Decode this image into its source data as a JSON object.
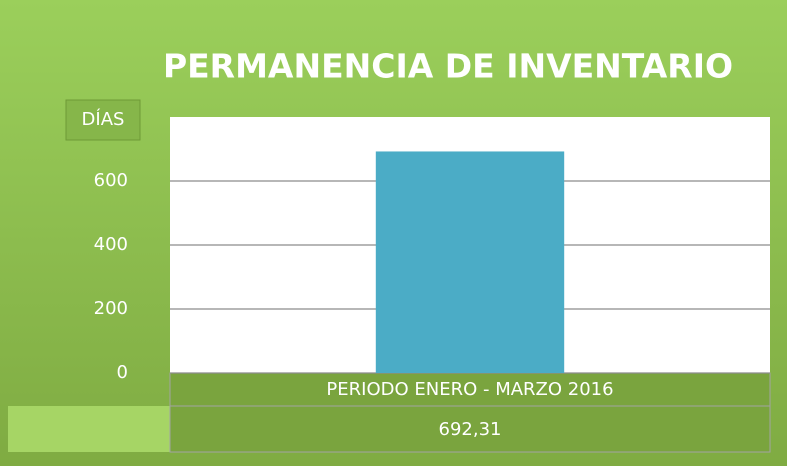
{
  "chart_data": {
    "type": "bar",
    "title": "PERMANENCIA DE INVENTARIO",
    "y_label": "DÍAS",
    "categories": [
      "PERIODO ENERO - MARZO 2016"
    ],
    "values": [
      692.31
    ],
    "value_labels": [
      "692,31"
    ],
    "color": "#4bacc6",
    "ylim": [
      0,
      800
    ],
    "yticks": [
      0,
      200,
      400,
      600
    ],
    "grid": true
  }
}
